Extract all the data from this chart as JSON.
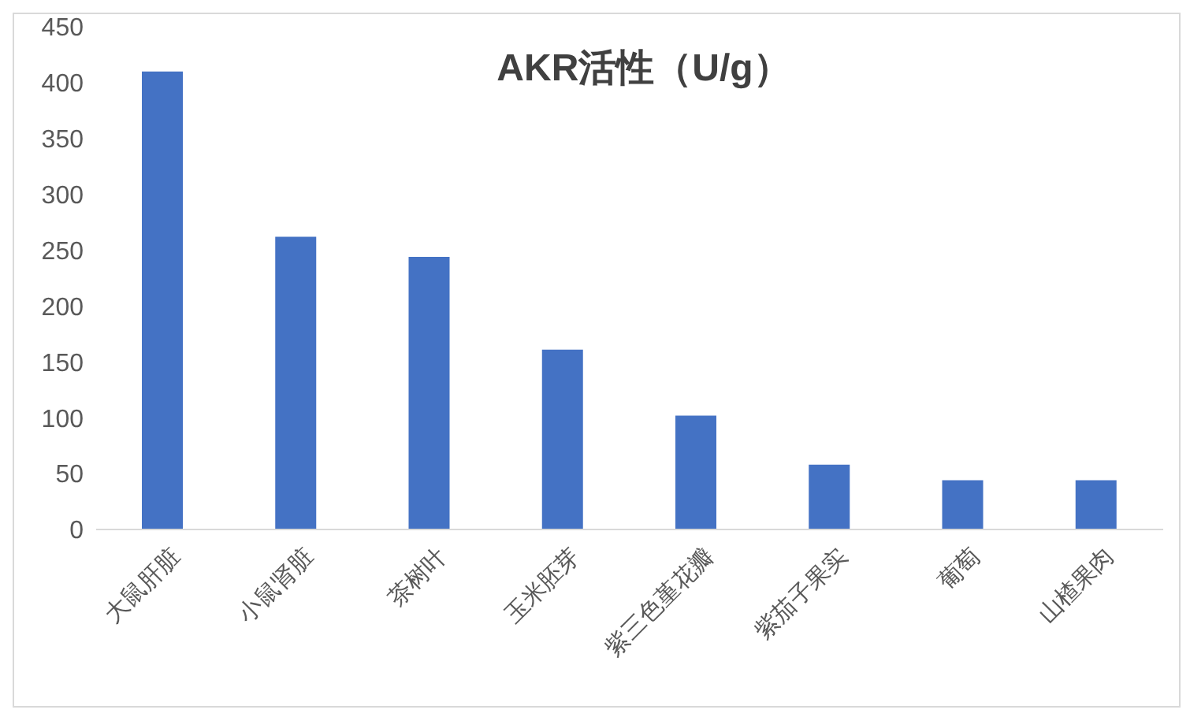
{
  "chart_data": {
    "type": "bar",
    "title": "AKR活性（U/g）",
    "categories": [
      "大鼠肝脏",
      "小鼠肾脏",
      "茶树叶",
      "玉米胚芽",
      "紫三色堇花瓣",
      "紫茄子果实",
      "葡萄",
      "山楂果肉"
    ],
    "values": [
      410,
      262,
      244,
      161,
      102,
      58,
      44,
      44
    ],
    "color": "#4472c4",
    "ylim": [
      0,
      450
    ],
    "yticks": [
      0,
      50,
      100,
      150,
      200,
      250,
      300,
      350,
      400,
      450
    ],
    "grid": false
  }
}
